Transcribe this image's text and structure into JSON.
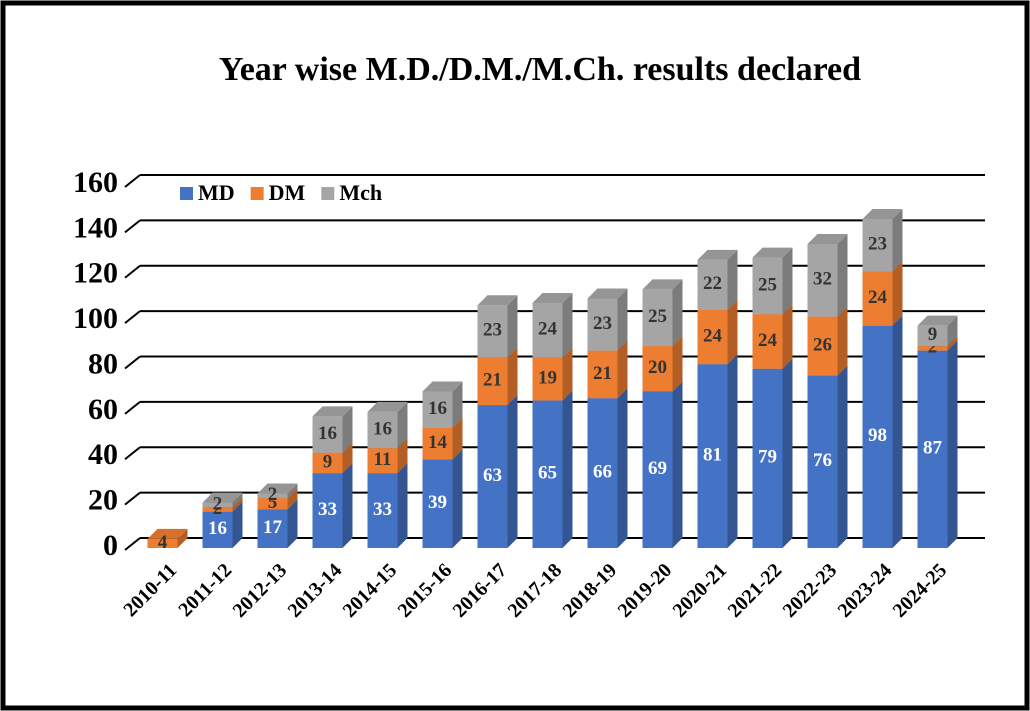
{
  "chart_data": {
    "type": "stacked_bar_3d",
    "title": "Year wise M.D./D.M./M.Ch. results declared",
    "categories": [
      "2010-11",
      "2011-12",
      "2012-13",
      "2013-14",
      "2014-15",
      "2015-16",
      "2016-17",
      "2017-18",
      "2018-19",
      "2019-20",
      "2020-21",
      "2021-22",
      "2022-23",
      "2023-24",
      "2024-25"
    ],
    "series": [
      {
        "name": "MD",
        "color": "#4472c4",
        "values": [
          null,
          16,
          17,
          33,
          33,
          39,
          63,
          65,
          66,
          69,
          81,
          79,
          76,
          98,
          87
        ]
      },
      {
        "name": "DM",
        "color": "#ed7d31",
        "values": [
          4,
          2,
          5,
          9,
          11,
          14,
          21,
          19,
          21,
          20,
          24,
          24,
          26,
          24,
          2
        ]
      },
      {
        "name": "Mch",
        "color": "#a5a5a5",
        "values": [
          null,
          2,
          2,
          16,
          16,
          16,
          23,
          24,
          23,
          25,
          22,
          25,
          32,
          23,
          9
        ]
      }
    ],
    "ylim": [
      0,
      160
    ],
    "yticks": [
      0,
      20,
      40,
      60,
      80,
      100,
      120,
      140,
      160
    ],
    "grid": true,
    "legend": "top-left"
  }
}
